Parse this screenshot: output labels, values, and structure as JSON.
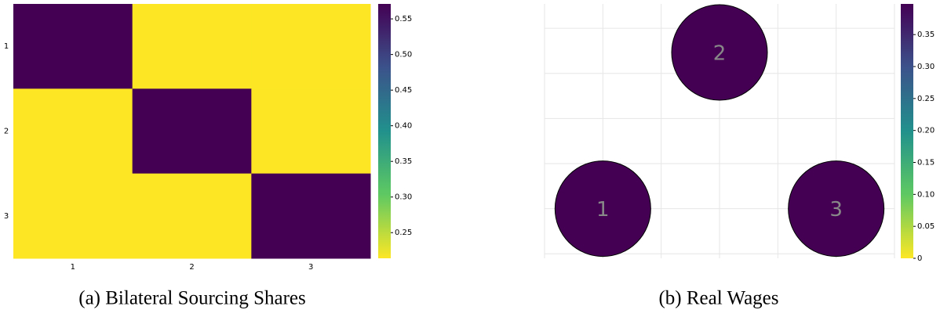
{
  "chart_data": [
    {
      "type": "heatmap",
      "caption": "(a) Bilateral Sourcing Shares",
      "x": [
        "1",
        "2",
        "3"
      ],
      "y": [
        "1",
        "2",
        "3"
      ],
      "z": [
        [
          0.571,
          0.214,
          0.214
        ],
        [
          0.214,
          0.571,
          0.214
        ],
        [
          0.214,
          0.214,
          0.571
        ]
      ],
      "colormap": "viridis",
      "reversed": true,
      "clim": [
        0.214,
        0.571
      ],
      "cticks": [
        0.25,
        {
          "value": 0.3,
          "label": "0.30"
        },
        0.35,
        {
          "value": 0.4,
          "label": "0.40"
        },
        0.45,
        {
          "value": 0.5,
          "label": "0.50"
        },
        0.55
      ]
    },
    {
      "type": "bubble",
      "caption": "(b) Real Wages",
      "labels": [
        "1",
        "2",
        "3"
      ],
      "x": [
        0,
        1,
        2
      ],
      "y": [
        0,
        1.732,
        0
      ],
      "values": [
        0.398,
        0.398,
        0.398
      ],
      "xlim": [
        -0.5,
        2.5
      ],
      "ylim": [
        -0.55,
        2.27
      ],
      "xticks": [
        -0.5,
        0,
        0.5,
        1,
        1.5,
        2,
        2.5
      ],
      "yticks": [
        -0.5,
        0,
        0.5,
        1,
        1.5,
        2
      ],
      "grid": true,
      "colormap": "viridis",
      "reversed": true,
      "clim": [
        0,
        0.398
      ],
      "cticks": [
        0,
        0.05,
        {
          "value": 0.1,
          "label": "0.10"
        },
        0.15,
        {
          "value": 0.2,
          "label": "0.20"
        },
        0.25,
        {
          "value": 0.3,
          "label": "0.30"
        },
        0.35
      ]
    }
  ]
}
